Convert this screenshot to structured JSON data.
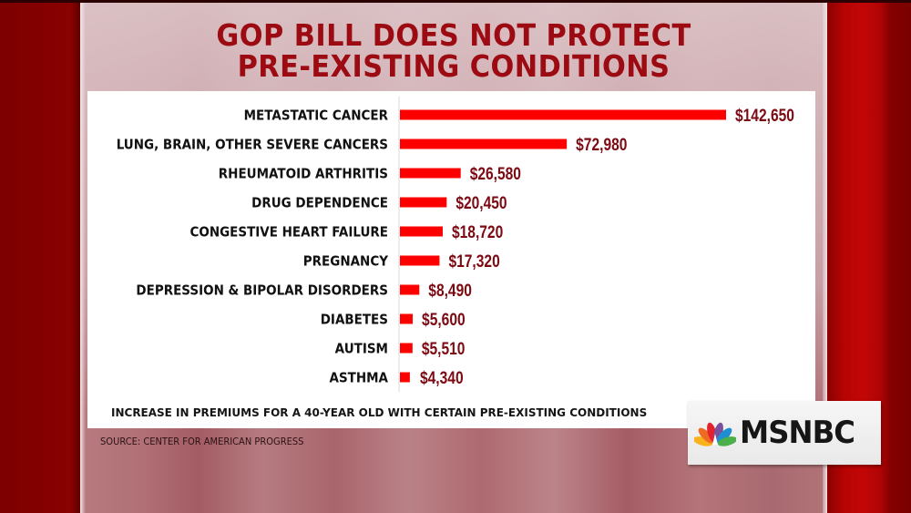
{
  "title": {
    "line1": "GOP BILL DOES NOT PROTECT",
    "line2": "PRE-EXISTING CONDITIONS"
  },
  "chart_data": {
    "type": "bar",
    "orientation": "horizontal",
    "title": "GOP BILL DOES NOT PROTECT PRE-EXISTING CONDITIONS",
    "xlabel": "",
    "ylabel": "",
    "grid": false,
    "categories": [
      "METASTATIC CANCER",
      "LUNG, BRAIN, OTHER SEVERE CANCERS",
      "RHEUMATOID ARTHRITIS",
      "DRUG DEPENDENCE",
      "CONGESTIVE HEART FAILURE",
      "PREGNANCY",
      "DEPRESSION & BIPOLAR DISORDERS",
      "DIABETES",
      "AUTISM",
      "ASTHMA"
    ],
    "values": [
      142650,
      72980,
      26580,
      20450,
      18720,
      17320,
      8490,
      5600,
      5510,
      4340
    ],
    "value_labels": [
      "$142,650",
      "$72,980",
      "$26,580",
      "$20,450",
      "$18,720",
      "$17,320",
      "$8,490",
      "$5,600",
      "$5,510",
      "$4,340"
    ],
    "xlim": [
      0,
      142650
    ],
    "footnote": "INCREASE IN PREMIUMS FOR A 40-YEAR OLD WITH CERTAIN PRE-EXISTING CONDITIONS",
    "source": "SOURCE: CENTER FOR AMERICAN PROGRESS",
    "bar_color": "#ff0000",
    "value_label_color": "#7d0a12"
  },
  "footnote": "INCREASE IN PREMIUMS FOR A 40-YEAR OLD WITH CERTAIN PRE-EXISTING CONDITIONS",
  "source": "SOURCE: CENTER FOR AMERICAN PROGRESS",
  "branding": {
    "network_logo_text": "MSNBC",
    "logo_icon": "nbc-peacock-icon",
    "peacock_colors": [
      "#f9b21b",
      "#ef6b24",
      "#e4222b",
      "#7a4f9e",
      "#1e8fd0",
      "#4bb04a"
    ]
  },
  "colors": {
    "title": "#9c0a12",
    "frame_red": "#b80404",
    "dark_red": "#7a0000"
  }
}
